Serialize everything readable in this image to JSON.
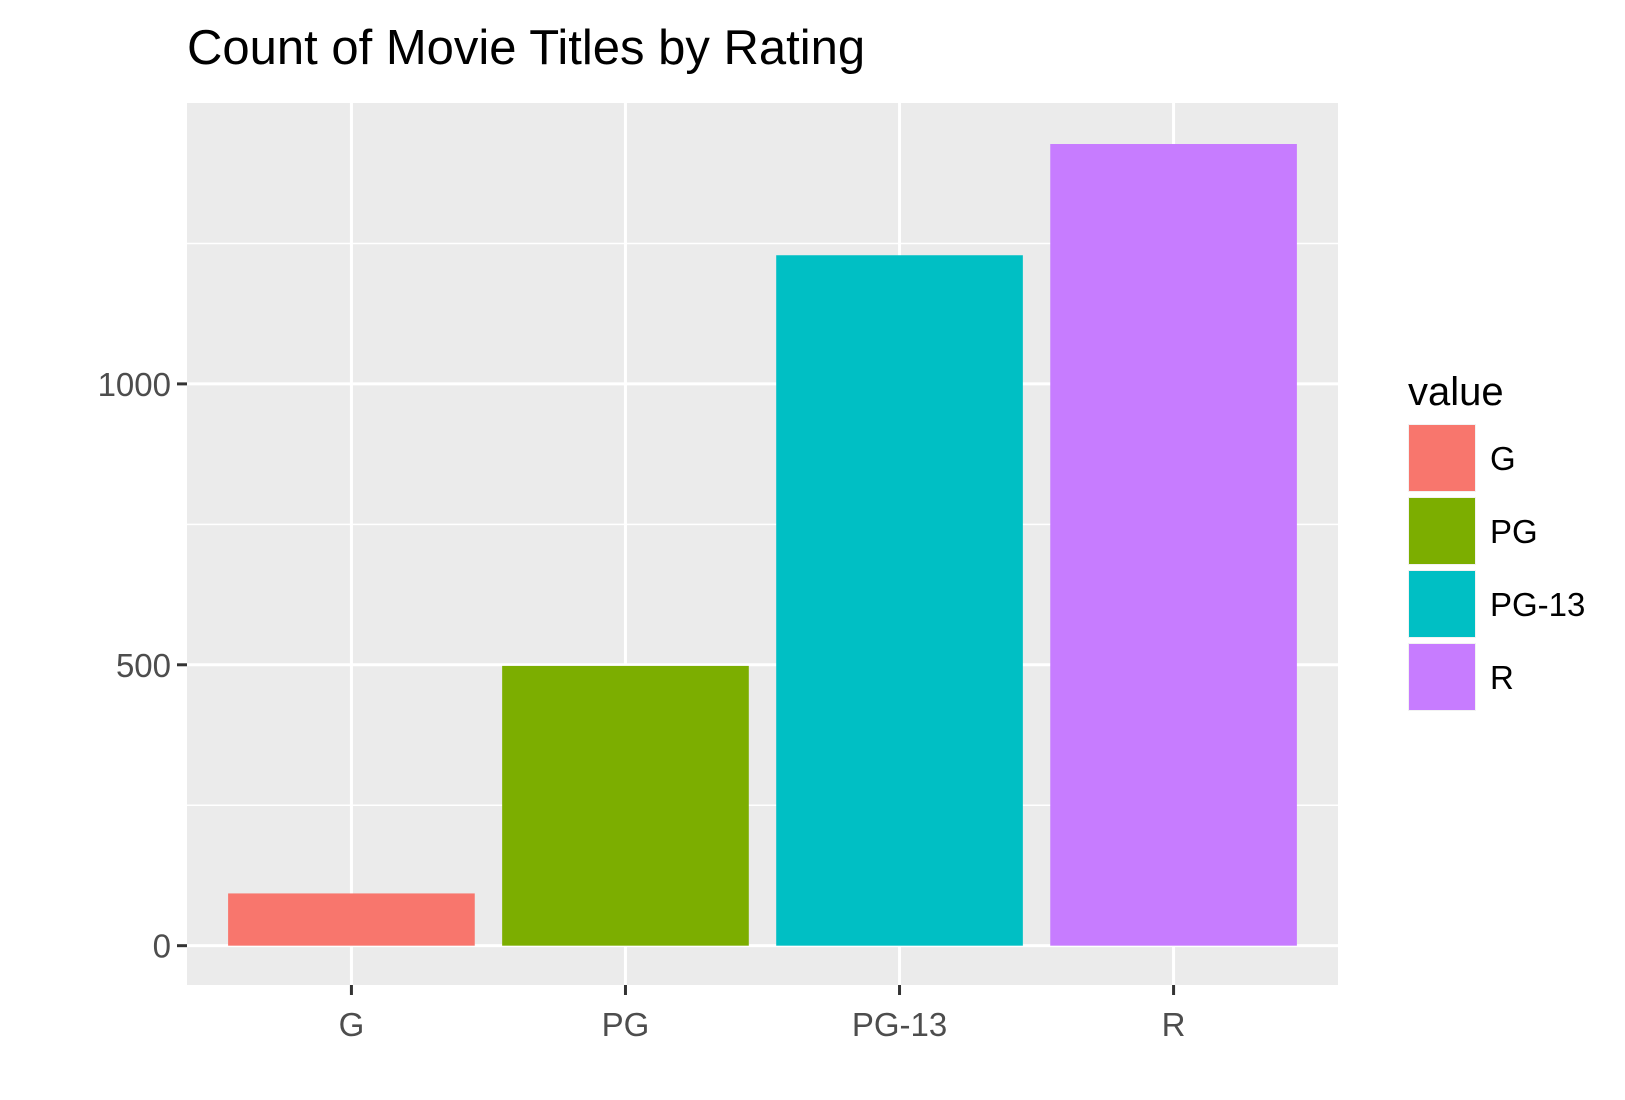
{
  "chart_data": {
    "type": "bar",
    "title": "Count of Movie Titles by Rating",
    "xlabel": "",
    "ylabel": "",
    "categories": [
      "G",
      "PG",
      "PG-13",
      "R"
    ],
    "values": [
      93,
      498,
      1229,
      1427
    ],
    "colors": [
      "#F8766D",
      "#7CAE00",
      "#00BFC4",
      "#C77CFF"
    ],
    "ylim": [
      -70,
      1500
    ],
    "y_ticks": [
      0,
      500,
      1000
    ],
    "y_tick_labels": [
      "0",
      "500",
      "1000"
    ],
    "y_minor_ticks": [
      250,
      750,
      1250
    ],
    "grid": true,
    "panel_background": "#EBEBEB",
    "legend": {
      "title": "value",
      "position": "right",
      "items": [
        "G",
        "PG",
        "PG-13",
        "R"
      ]
    }
  }
}
